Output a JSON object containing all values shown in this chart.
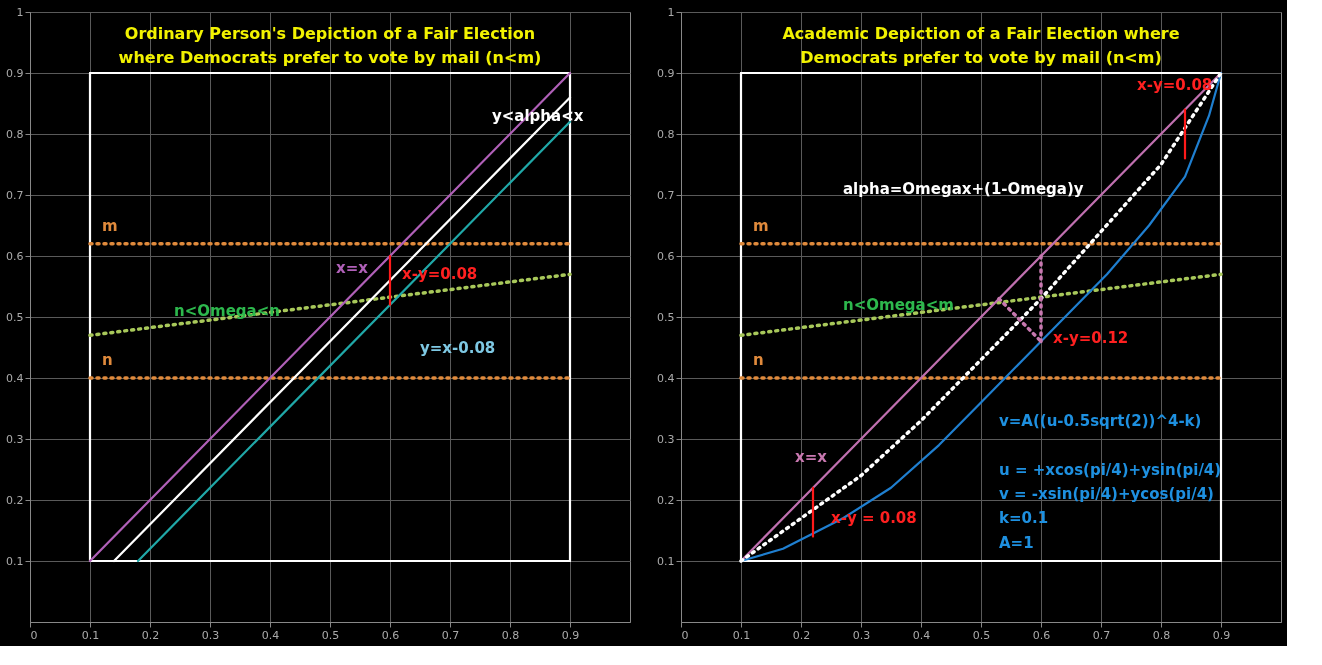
{
  "chart_data": [
    {
      "type": "line",
      "title": "Ordinary Person's Depiction of a Fair Election\nwhere Democrats prefer to vote by mail (n<m)",
      "xlim": [
        0,
        1
      ],
      "ylim": [
        0,
        1
      ],
      "xticks": [
        0,
        0.1,
        0.2,
        0.3,
        0.4,
        0.5,
        0.6,
        0.7,
        0.8,
        0.9
      ],
      "yticks": [
        0.1,
        0.2,
        0.3,
        0.4,
        0.5,
        0.6,
        0.7,
        0.8,
        0.9,
        1
      ],
      "grid": true,
      "series": [
        {
          "color": "#ffffff",
          "x": [
            0.1,
            0.9
          ],
          "values": [
            0.1,
            0.1
          ],
          "line_style": "solid"
        },
        {
          "color": "#ffffff",
          "x": [
            0.9,
            0.9
          ],
          "values": [
            0.1,
            0.9
          ],
          "line_style": "solid"
        },
        {
          "color": "#ffffff",
          "x": [
            0.1,
            0.9
          ],
          "values": [
            0.9,
            0.9
          ],
          "line_style": "solid"
        },
        {
          "color": "#ffffff",
          "x": [
            0.1,
            0.1
          ],
          "values": [
            0.1,
            0.9
          ],
          "line_style": "solid"
        },
        {
          "color": "#e08a3c",
          "x": [
            0.1,
            0.9
          ],
          "values": [
            0.62,
            0.62
          ],
          "line_style": "dotted"
        },
        {
          "color": "#e08a3c",
          "x": [
            0.1,
            0.9
          ],
          "values": [
            0.4,
            0.4
          ],
          "line_style": "dotted"
        },
        {
          "color": "#a8c85a",
          "x": [
            0.1,
            0.9
          ],
          "values": [
            0.47,
            0.57
          ],
          "line_style": "dotted"
        },
        {
          "color": "#b060b8",
          "x": [
            0.1,
            0.5,
            0.9
          ],
          "values": [
            0.1,
            0.5,
            0.9
          ],
          "line_style": "solid"
        },
        {
          "color": "#ffffff",
          "x": [
            0.14,
            0.9
          ],
          "values": [
            0.1,
            0.86
          ],
          "line_style": "solid"
        },
        {
          "color": "#20a8a8",
          "x": [
            0.18,
            0.9
          ],
          "values": [
            0.1,
            0.82
          ],
          "line_style": "solid"
        },
        {
          "color": "#ff1a1a",
          "x": [
            0.6,
            0.6
          ],
          "values": [
            0.52,
            0.6
          ],
          "line_style": "solid"
        }
      ],
      "annotations": [
        "m",
        "n",
        "x=x",
        "x-y=0.08",
        "n<Omega<n",
        "y=x-0.08",
        "y<alpha<x"
      ]
    },
    {
      "type": "line",
      "title": "Academic Depiction of a Fair Election where\nDemocrats prefer to vote by mail (n<m)",
      "xlim": [
        0,
        1
      ],
      "ylim": [
        0,
        1
      ],
      "xticks": [
        0,
        0.1,
        0.2,
        0.3,
        0.4,
        0.5,
        0.6,
        0.7,
        0.8,
        0.9
      ],
      "yticks": [
        0.1,
        0.2,
        0.3,
        0.4,
        0.5,
        0.6,
        0.7,
        0.8,
        0.9,
        1
      ],
      "grid": true,
      "series": [
        {
          "color": "#ffffff",
          "x": [
            0.1,
            0.9
          ],
          "values": [
            0.1,
            0.1
          ],
          "line_style": "solid"
        },
        {
          "color": "#ffffff",
          "x": [
            0.9,
            0.9
          ],
          "values": [
            0.1,
            0.9
          ],
          "line_style": "solid"
        },
        {
          "color": "#ffffff",
          "x": [
            0.1,
            0.9
          ],
          "values": [
            0.9,
            0.9
          ],
          "line_style": "solid"
        },
        {
          "color": "#ffffff",
          "x": [
            0.1,
            0.1
          ],
          "values": [
            0.1,
            0.9
          ],
          "line_style": "solid"
        },
        {
          "color": "#e08a3c",
          "x": [
            0.1,
            0.9
          ],
          "values": [
            0.62,
            0.62
          ],
          "line_style": "dotted"
        },
        {
          "color": "#e08a3c",
          "x": [
            0.1,
            0.9
          ],
          "values": [
            0.4,
            0.4
          ],
          "line_style": "dotted"
        },
        {
          "color": "#a8c85a",
          "x": [
            0.1,
            0.9
          ],
          "values": [
            0.47,
            0.57
          ],
          "line_style": "dotted"
        },
        {
          "color": "#c070b0",
          "x": [
            0.1,
            0.5,
            0.9
          ],
          "values": [
            0.1,
            0.5,
            0.9
          ],
          "line_style": "solid"
        },
        {
          "color": "#1f7fd0",
          "x": [
            0.1,
            0.17,
            0.27,
            0.35,
            0.43,
            0.5,
            0.57,
            0.64,
            0.71,
            0.78,
            0.84,
            0.88,
            0.9
          ],
          "values": [
            0.1,
            0.12,
            0.17,
            0.22,
            0.29,
            0.36,
            0.43,
            0.5,
            0.57,
            0.65,
            0.73,
            0.83,
            0.9
          ],
          "line_style": "solid"
        },
        {
          "color": "#ffffff",
          "x": [
            0.1,
            0.2,
            0.3,
            0.4,
            0.5,
            0.6,
            0.7,
            0.8,
            0.9
          ],
          "values": [
            0.1,
            0.17,
            0.24,
            0.33,
            0.43,
            0.53,
            0.64,
            0.75,
            0.9
          ],
          "line_style": "dotted"
        },
        {
          "color": "#c878b0",
          "x": [
            0.6,
            0.6
          ],
          "values": [
            0.6,
            0.46
          ],
          "line_style": "dotted"
        },
        {
          "color": "#c878b0",
          "x": [
            0.53,
            0.6
          ],
          "values": [
            0.53,
            0.46
          ],
          "line_style": "dotted"
        },
        {
          "color": "#ff1a1a",
          "x": [
            0.22,
            0.22
          ],
          "values": [
            0.14,
            0.22
          ],
          "line_style": "solid"
        },
        {
          "color": "#ff1a1a",
          "x": [
            0.84,
            0.84
          ],
          "values": [
            0.76,
            0.84
          ],
          "line_style": "solid"
        }
      ],
      "annotations": [
        "m",
        "n",
        "n<Omega<m",
        "x-y=0.12",
        "alpha=Omegax+(1-Omega)y",
        "x-y=0.08",
        "x=x",
        "x-y = 0.08",
        "v=A((u-0.5sqrt(2))^4-k)",
        "u = +xcos(pi/4)+ysin(pi/4)",
        "v = -xsin(pi/4)+ycos(pi/4)",
        "k=0.1",
        "A=1"
      ]
    }
  ]
}
